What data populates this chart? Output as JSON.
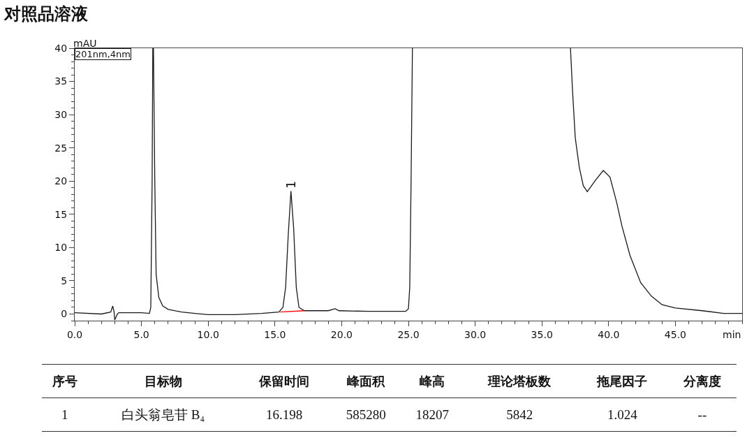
{
  "chart_data": {
    "type": "line",
    "title": "对照品溶液",
    "xlabel": "min",
    "ylabel": "mAU",
    "xlim": [
      0,
      50
    ],
    "ylim": [
      -1,
      40
    ],
    "xticks": [
      {
        "value": 0,
        "label": "0.0"
      },
      {
        "value": 5,
        "label": "5.0"
      },
      {
        "value": 10,
        "label": "10.0"
      },
      {
        "value": 15,
        "label": "15.0"
      },
      {
        "value": 20,
        "label": "20.0"
      },
      {
        "value": 25,
        "label": "25.0"
      },
      {
        "value": 30,
        "label": "30.0"
      },
      {
        "value": 35,
        "label": "35.0"
      },
      {
        "value": 40,
        "label": "40.0"
      },
      {
        "value": 45,
        "label": "45.0"
      }
    ],
    "yticks": [
      0,
      5,
      10,
      15,
      20,
      25,
      30,
      35,
      40
    ],
    "marker": "none",
    "line_style": "solid",
    "series": [
      {
        "color": "#1a1a1a",
        "x": [
          0,
          2,
          2.7,
          2.85,
          2.95,
          3.0,
          3.2,
          3.3,
          5.0,
          5.6,
          5.7,
          5.8,
          5.85,
          5.9,
          6.0,
          6.1,
          6.3,
          6.6,
          7.0,
          8.0,
          9.0,
          10.0,
          12.0,
          14.0,
          15.3,
          15.6,
          15.8,
          16.0,
          16.2,
          16.4,
          16.6,
          16.8,
          17.2,
          19.0,
          19.5,
          19.8,
          22.0,
          24.8,
          25.0,
          25.1,
          25.2,
          25.3,
          31,
          37.14,
          37.3,
          37.5,
          37.8,
          38.1,
          38.4,
          39.0,
          39.6,
          40.1,
          40.6,
          41.0,
          41.6,
          42.4,
          43.2,
          44.0,
          45.0,
          47.0,
          48.6,
          50
        ],
        "values": [
          0.2,
          0.0,
          0.3,
          1.2,
          0.3,
          -0.9,
          0.0,
          0.2,
          0.2,
          0.1,
          1,
          20,
          40,
          40,
          20,
          6,
          2.5,
          1.2,
          0.7,
          0.3,
          0.1,
          -0.1,
          -0.1,
          0.1,
          0.3,
          1,
          4,
          12,
          18.5,
          13,
          4,
          1,
          0.5,
          0.5,
          0.8,
          0.5,
          0.4,
          0.4,
          0.8,
          4,
          20,
          40,
          null,
          40,
          33.4,
          26.5,
          22.1,
          19.3,
          18.4,
          20.1,
          21.6,
          20.6,
          16.8,
          13.2,
          8.8,
          4.7,
          2.7,
          1.4,
          0.9,
          0.5,
          0.1,
          0.1
        ]
      },
      {
        "color": "#ff0000",
        "x": [
          15.4,
          17.2
        ],
        "values": [
          0.3,
          0.5
        ]
      }
    ],
    "annotations": [
      "201nm,4nm",
      {
        "text": "1",
        "x": 16.2,
        "y": 18.5
      },
      "序号",
      "目标物",
      "保留时间",
      "峰面积",
      "峰高",
      "理论塔板数",
      "拖尾因子",
      "分离度",
      "1",
      "白头翁皂苷 B₄",
      "16.198",
      "585280",
      "18207",
      "5842",
      "1.024",
      "--"
    ]
  }
}
